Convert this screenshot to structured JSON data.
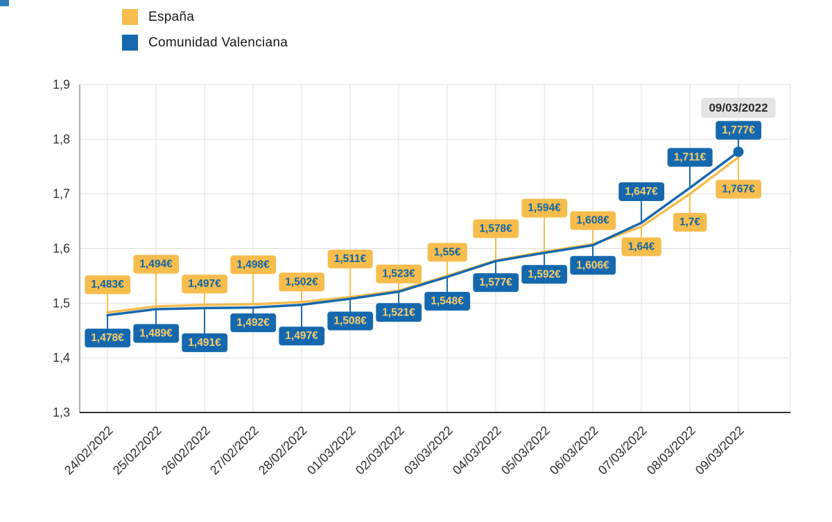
{
  "tooltip": {
    "label": "09/03/2022"
  },
  "colors": {
    "espana": "#F6BD4D",
    "comunidad_valenciana": "#1568AE",
    "grid": "#DEDEDE",
    "x_axis": "#303030",
    "y_axis": "#909090",
    "tooltip_bg": "#E4E4E4"
  },
  "chart_data": {
    "type": "line",
    "x": [
      "24/02/2022",
      "25/02/2022",
      "26/02/2022",
      "27/02/2022",
      "28/02/2022",
      "01/03/2022",
      "02/03/2022",
      "03/03/2022",
      "04/03/2022",
      "05/03/2022",
      "06/03/2022",
      "07/03/2022",
      "08/03/2022",
      "09/03/2022"
    ],
    "series": [
      {
        "name": "España",
        "color": "#F6BD4D",
        "label_text_color": "#1265A4",
        "values": [
          1.483,
          1.494,
          1.497,
          1.498,
          1.502,
          1.511,
          1.523,
          1.55,
          1.578,
          1.594,
          1.608,
          1.64,
          1.7,
          1.767
        ],
        "labels": [
          "1,483€",
          "1,494€",
          "1,497€",
          "1,498€",
          "1,502€",
          "1,511€",
          "1,523€",
          "1,55€",
          "1,578€",
          "1,594€",
          "1,608€",
          "1,64€",
          "1,7€",
          "1,767€"
        ],
        "label_side": [
          "above",
          "above",
          "above",
          "above",
          "above",
          "above",
          "above",
          "above",
          "above",
          "above",
          "above",
          "below",
          "below",
          "below"
        ],
        "label_offset": [
          40,
          61,
          30,
          57,
          29,
          55,
          24,
          34,
          46,
          63,
          34,
          29,
          41,
          46
        ]
      },
      {
        "name": "Comunidad Valenciana",
        "color": "#1568AE",
        "label_text_color": "#F8CE6D",
        "values": [
          1.478,
          1.489,
          1.491,
          1.492,
          1.497,
          1.508,
          1.521,
          1.548,
          1.577,
          1.592,
          1.606,
          1.647,
          1.711,
          1.777
        ],
        "labels": [
          "1,478€",
          "1,489€",
          "1,491€",
          "1,492€",
          "1,497€",
          "1,508€",
          "1,521€",
          "1,548€",
          "1,577€",
          "1,592€",
          "1,606€",
          "1,647€",
          "1,711€",
          "1,777€"
        ],
        "label_side": [
          "below",
          "below",
          "below",
          "below",
          "below",
          "below",
          "below",
          "below",
          "below",
          "below",
          "below",
          "above",
          "above",
          "above"
        ],
        "label_offset": [
          33,
          35,
          50,
          22,
          45,
          32,
          30,
          35,
          31,
          31,
          29,
          45,
          44,
          31
        ]
      }
    ],
    "ylim": [
      1.3,
      1.9
    ],
    "yticks": [
      {
        "value": 1.9,
        "label": "1,9"
      },
      {
        "value": 1.8,
        "label": "1,8"
      },
      {
        "value": 1.7,
        "label": "1,7"
      },
      {
        "value": 1.6,
        "label": "1,6"
      },
      {
        "value": 1.5,
        "label": "1,5"
      },
      {
        "value": 1.4,
        "label": "1,4"
      },
      {
        "value": 1.3,
        "label": "1,3"
      }
    ],
    "grid": true,
    "legend_position": "top-left",
    "highlight": {
      "series": 1,
      "index": 13,
      "tooltip": "09/03/2022"
    }
  }
}
